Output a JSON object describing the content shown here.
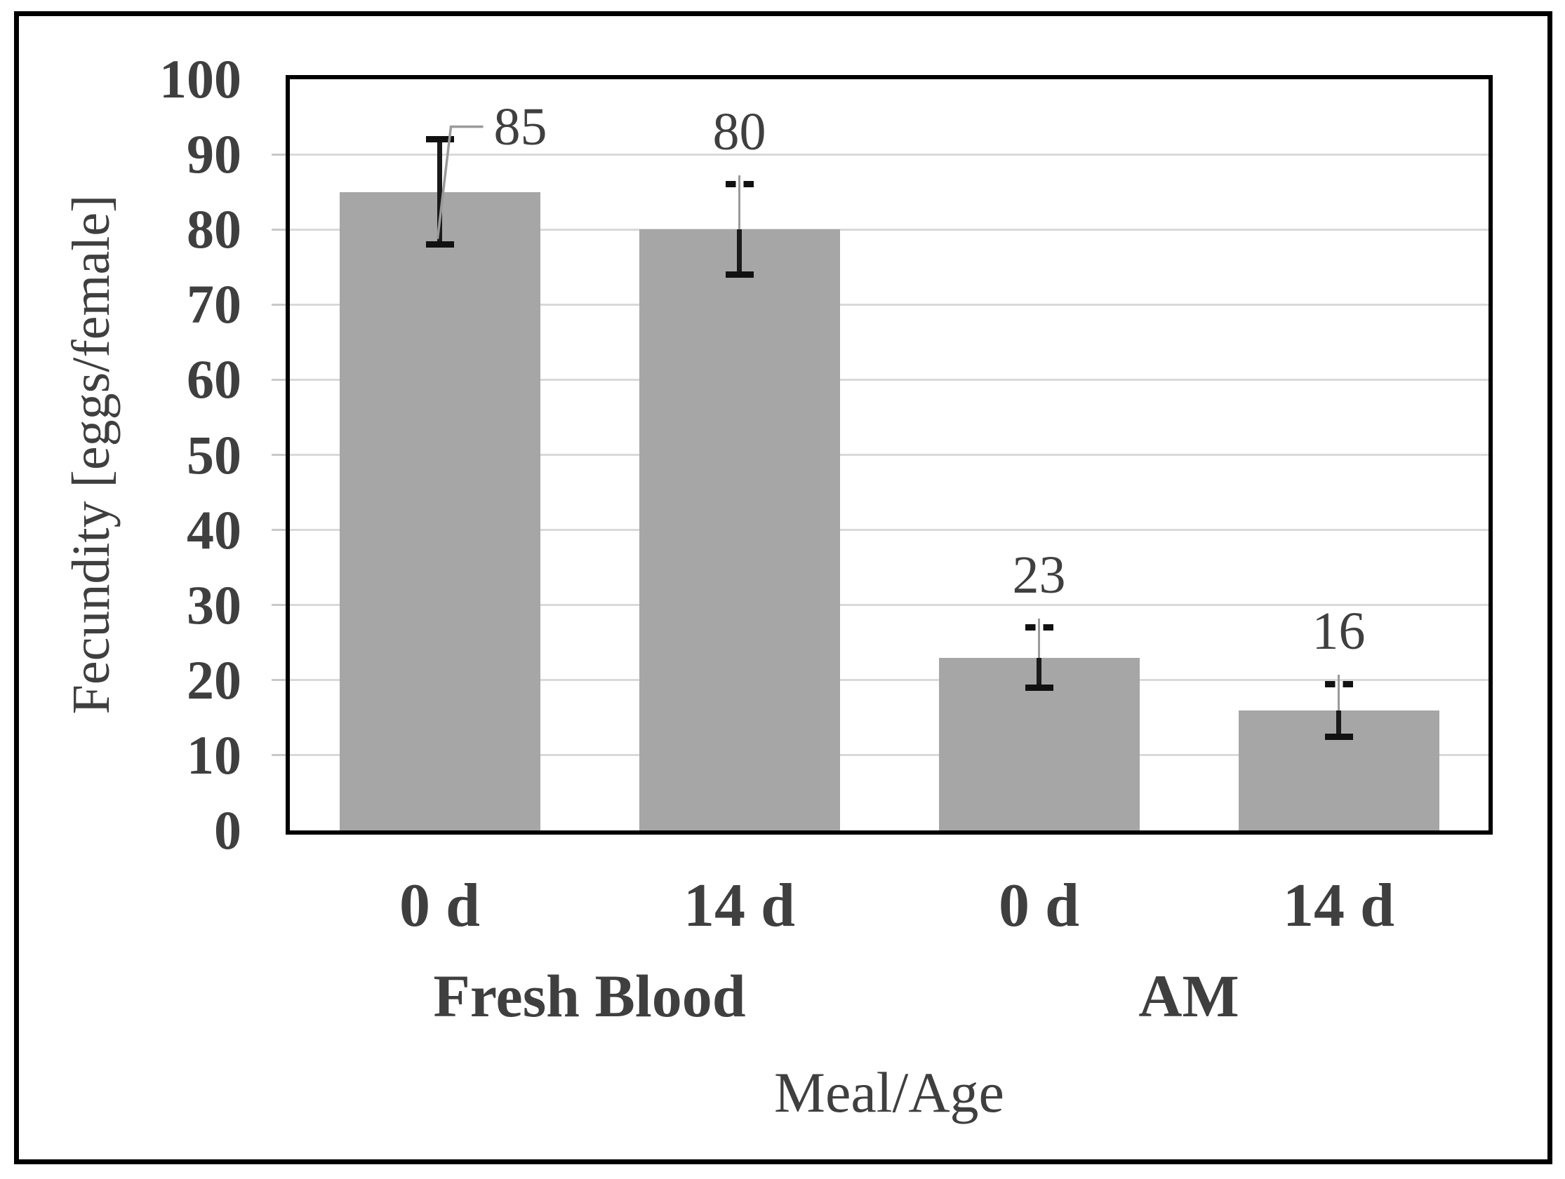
{
  "chart_data": {
    "type": "bar",
    "title": "",
    "xlabel": "Meal/Age",
    "ylabel": "Fecundity [eggs/female]",
    "ylim": [
      0,
      100
    ],
    "ytick_step": 10,
    "ytick_labels": [
      "0",
      "10",
      "20",
      "30",
      "40",
      "50",
      "60",
      "70",
      "80",
      "90",
      "100"
    ],
    "grid": "horizontal",
    "legend_position": "none",
    "categories": [
      "0 d",
      "14 d",
      "0 d",
      "14 d"
    ],
    "groups": [
      {
        "label": "Fresh Blood",
        "bars": [
          0,
          1
        ]
      },
      {
        "label": "AM",
        "bars": [
          2,
          3
        ]
      }
    ],
    "series": [
      {
        "name": "Fecundity",
        "values": [
          85,
          80,
          23,
          16
        ],
        "errors": [
          7,
          6,
          4,
          3.5
        ],
        "data_labels": [
          "85",
          "80",
          "23",
          "16"
        ],
        "label_placement": [
          "offset-right",
          "above",
          "above",
          "above"
        ]
      }
    ],
    "colors": {
      "bar": "#a6a6a6",
      "error_bar": "#1a1a1a",
      "leader_line": "#9a9a9a",
      "gridline": "#d9d9d9",
      "text": "#3f3f3f",
      "frame": "#000000"
    }
  }
}
